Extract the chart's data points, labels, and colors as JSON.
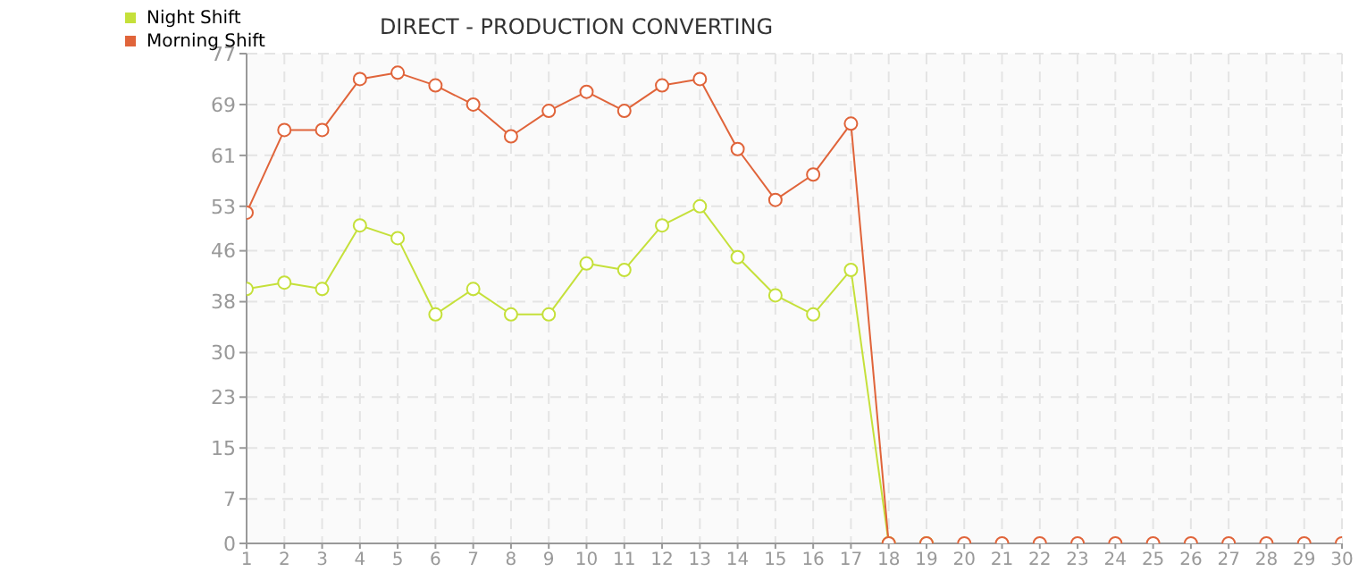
{
  "chart_data": {
    "type": "line",
    "title": "DIRECT - PRODUCTION CONVERTING",
    "x": [
      1,
      2,
      3,
      4,
      5,
      6,
      7,
      8,
      9,
      10,
      11,
      12,
      13,
      14,
      15,
      16,
      17,
      18,
      19,
      20,
      21,
      22,
      23,
      24,
      25,
      26,
      27,
      28,
      29,
      30
    ],
    "series": [
      {
        "name": "Night Shift",
        "color": "#c5e03a",
        "values": [
          40,
          41,
          40,
          50,
          48,
          36,
          40,
          36,
          36,
          44,
          43,
          50,
          53,
          45,
          39,
          36,
          43,
          0,
          0,
          null,
          null,
          null,
          null,
          null,
          null,
          null,
          null,
          null,
          null,
          null
        ]
      },
      {
        "name": "Morning Shift",
        "color": "#e0643a",
        "values": [
          52,
          65,
          65,
          73,
          74,
          72,
          69,
          64,
          68,
          71,
          68,
          72,
          73,
          62,
          54,
          58,
          66,
          0,
          0,
          0,
          0,
          0,
          0,
          0,
          0,
          0,
          0,
          0,
          0,
          0
        ]
      }
    ],
    "xlim": [
      1,
      30
    ],
    "xticks": [
      1,
      2,
      3,
      4,
      5,
      6,
      7,
      8,
      9,
      10,
      11,
      12,
      13,
      14,
      15,
      16,
      17,
      18,
      19,
      20,
      21,
      22,
      23,
      24,
      25,
      26,
      27,
      28,
      29,
      30
    ],
    "ylim": [
      0,
      77
    ],
    "yticks": [
      0,
      7,
      15,
      23,
      30,
      38,
      46,
      53,
      61,
      69,
      77
    ],
    "grid": true,
    "legend": "top left",
    "marker": "circle",
    "line_style": "solid"
  }
}
